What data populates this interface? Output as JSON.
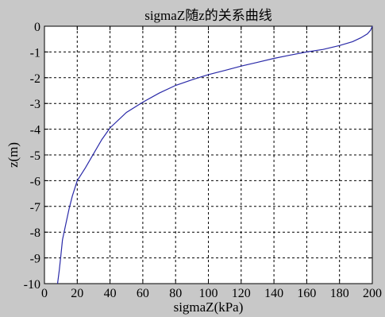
{
  "chart_data": {
    "type": "line",
    "title": "sigmaZ随z的关系曲线",
    "xlabel": "sigmaZ(kPa)",
    "ylabel": "z(m)",
    "xlim": [
      0,
      200
    ],
    "ylim": [
      -10,
      0
    ],
    "grid": true,
    "xticks": [
      0,
      20,
      40,
      60,
      80,
      100,
      120,
      140,
      160,
      180,
      200
    ],
    "yticks": [
      0,
      -1,
      -2,
      -3,
      -4,
      -5,
      -6,
      -7,
      -8,
      -9,
      -10
    ],
    "xtick_labels": [
      "0",
      "20",
      "40",
      "60",
      "80",
      "100",
      "120",
      "140",
      "160",
      "180",
      "200"
    ],
    "ytick_labels": [
      "0",
      "-1",
      "-2",
      "-3",
      "-4",
      "-5",
      "-6",
      "-7",
      "-8",
      "-9",
      "-10"
    ],
    "series": [
      {
        "color": "#2a2aa8",
        "x": [
          200,
          199,
          197,
          193,
          188,
          180,
          170,
          160,
          150,
          140,
          130,
          120,
          110,
          100,
          90,
          80,
          70,
          60,
          50,
          40,
          35,
          30,
          25,
          20,
          17,
          15,
          13,
          11,
          10,
          9,
          8
        ],
        "y": [
          0,
          -0.15,
          -0.3,
          -0.45,
          -0.6,
          -0.75,
          -0.9,
          -1.0,
          -1.12,
          -1.25,
          -1.4,
          -1.55,
          -1.72,
          -1.88,
          -2.08,
          -2.3,
          -2.6,
          -2.95,
          -3.35,
          -3.95,
          -4.4,
          -4.95,
          -5.5,
          -6.0,
          -6.6,
          -7.1,
          -7.7,
          -8.3,
          -8.9,
          -9.5,
          -10
        ]
      }
    ]
  }
}
